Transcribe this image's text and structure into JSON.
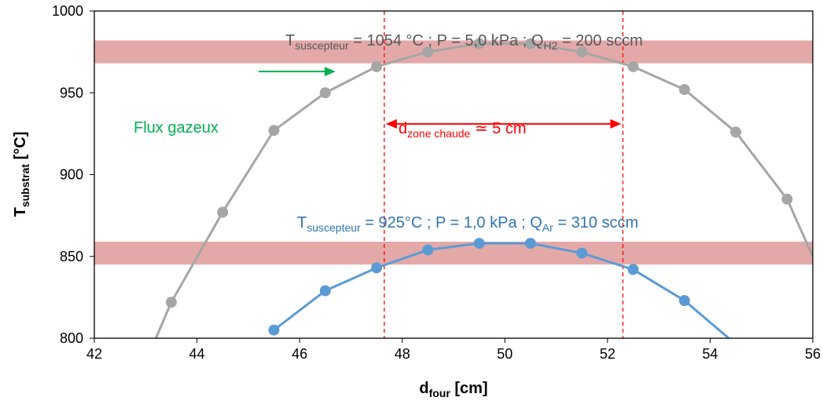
{
  "chart_data": {
    "type": "scatter",
    "xlim": [
      42,
      56
    ],
    "ylim": [
      800,
      1000
    ],
    "x_ticks": [
      "42",
      "44",
      "46",
      "48",
      "50",
      "52",
      "54",
      "56"
    ],
    "y_ticks": [
      "800",
      "850",
      "900",
      "950",
      "1000"
    ],
    "xlabel": {
      "main": "d",
      "sub": "four",
      "unit": " [cm]"
    },
    "ylabel": {
      "main": "T",
      "sub": "substrat",
      "unit": " [°C]"
    },
    "grid": false,
    "series": [
      {
        "color": "#a6a6a6",
        "points": [
          [
            43.2,
            800
          ],
          [
            43.5,
            822
          ],
          [
            44.5,
            877
          ],
          [
            45.5,
            927
          ],
          [
            46.5,
            950
          ],
          [
            47.5,
            966
          ],
          [
            48.5,
            975
          ],
          [
            49.5,
            980
          ],
          [
            50.5,
            980
          ],
          [
            51.5,
            975
          ],
          [
            52.5,
            966
          ],
          [
            53.5,
            952
          ],
          [
            54.5,
            926
          ],
          [
            55.5,
            885
          ],
          [
            56,
            850
          ]
        ],
        "clip_first": true,
        "label": {
          "pre": "T",
          "sub1": "suscepteur",
          "mid": " = 1054 °C ; P = 5,0 kPa ; Q",
          "sub2": "H2",
          "post": " = 200 sccm",
          "color": "#595959"
        }
      },
      {
        "color": "#5b9bd5",
        "points": [
          [
            45.5,
            805
          ],
          [
            46.5,
            829
          ],
          [
            47.5,
            843
          ],
          [
            48.5,
            854
          ],
          [
            49.5,
            858
          ],
          [
            50.5,
            858
          ],
          [
            51.5,
            852
          ],
          [
            52.5,
            842
          ],
          [
            53.5,
            823
          ],
          [
            54.4,
            799
          ]
        ],
        "clip_last": true,
        "label": {
          "pre": "T",
          "sub1": "suscepteur",
          "mid": " = 925°C ; P = 1,0 kPa ; Q",
          "sub2": "Ar",
          "post": " = 310 sccm",
          "color": "#2e75b6"
        }
      }
    ],
    "bands": [
      {
        "y_from": 968,
        "y_to": 982,
        "color": "#d98c8c"
      },
      {
        "y_from": 845,
        "y_to": 859,
        "color": "#d98c8c"
      }
    ],
    "vlines": [
      47.65,
      52.3
    ],
    "hot_zone": {
      "x_from": 47.65,
      "x_to": 52.3,
      "y": 931,
      "text_pre": "d",
      "text_sub": "zone chaude",
      "text_post": " ≃ 5 cm",
      "color": "#ff0000"
    },
    "flow": {
      "label": "Flux gazeux",
      "color": "#00b050",
      "arrow_x_from": 45.2,
      "arrow_x_to": 46.7,
      "arrow_y": 963
    }
  }
}
